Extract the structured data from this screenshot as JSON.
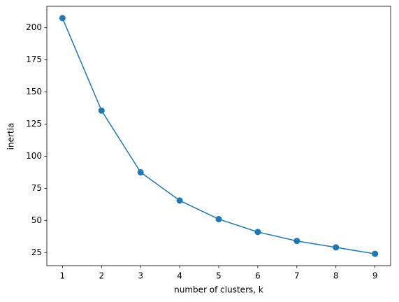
{
  "chart_data": {
    "type": "line",
    "xlabel": "number of clusters, k",
    "ylabel": "inertia",
    "x": [
      1,
      2,
      3,
      4,
      5,
      6,
      7,
      8,
      9
    ],
    "series": [
      {
        "color": "#1f77b4",
        "values": [
          207.5,
          135.5,
          87.5,
          65.5,
          51,
          41,
          34,
          29,
          24
        ]
      }
    ],
    "xlim": [
      0.6,
      9.4
    ],
    "xticks": [
      1,
      2,
      3,
      4,
      5,
      6,
      7,
      8,
      9
    ],
    "ylim": [
      14.8,
      216.7
    ],
    "yticks": [
      25,
      50,
      75,
      100,
      125,
      150,
      175,
      200
    ],
    "grid": false,
    "markers": true
  }
}
